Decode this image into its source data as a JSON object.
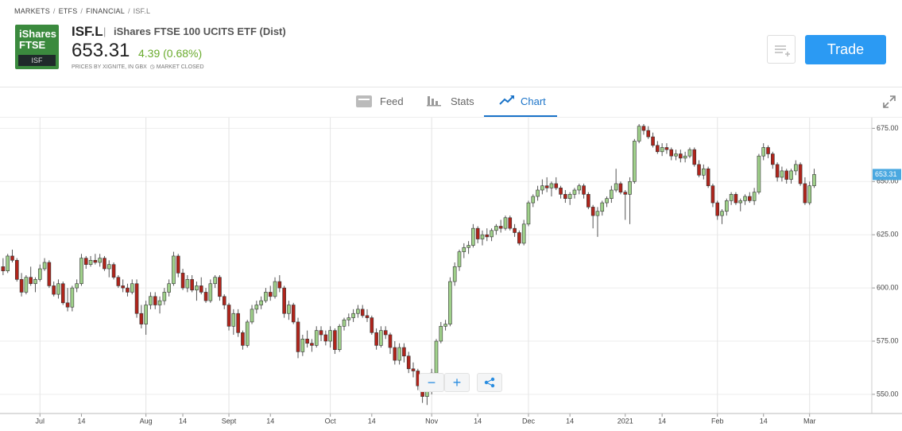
{
  "header": {
    "breadcrumb": [
      "MARKETS",
      "ETFS",
      "FINANCIAL",
      "ISF.L"
    ],
    "logo": {
      "line1": "iShares",
      "line2": "FTSE",
      "badge": "ISF"
    },
    "ticker": "ISF.L",
    "name": "iShares FTSE 100 UCITS ETF (Dist)",
    "price": "653.31",
    "change": "4.39 (0.68%)",
    "source": "PRICES BY XIGNITE, IN GBX",
    "status": "MARKET CLOSED",
    "trade_button": "Trade"
  },
  "tabs": [
    "Feed",
    "Stats",
    "Chart"
  ],
  "chart_data": {
    "type": "candlestick",
    "up_color": "#9fd08a",
    "down_color": "#b0241b",
    "outline_color": "#333333",
    "grid": true,
    "ylim": [
      541,
      680
    ],
    "yticks": [
      {
        "value": 550,
        "label": "550.00"
      },
      {
        "value": 575,
        "label": "575.00"
      },
      {
        "value": 600,
        "label": "600.00"
      },
      {
        "value": 625,
        "label": "625.00"
      },
      {
        "value": 650,
        "label": "650.00"
      },
      {
        "value": 675,
        "label": "675.00"
      }
    ],
    "xlim": [
      -0.67,
      188.5
    ],
    "xticks": [
      {
        "value": 8,
        "label": "Jul"
      },
      {
        "value": 17,
        "label": "14"
      },
      {
        "value": 31,
        "label": "Aug"
      },
      {
        "value": 39,
        "label": "14"
      },
      {
        "value": 49,
        "label": "Sept"
      },
      {
        "value": 58,
        "label": "14"
      },
      {
        "value": 71,
        "label": "Oct"
      },
      {
        "value": 80,
        "label": "14"
      },
      {
        "value": 93,
        "label": "Nov"
      },
      {
        "value": 103,
        "label": "14"
      },
      {
        "value": 114,
        "label": "Dec"
      },
      {
        "value": 123,
        "label": "14"
      },
      {
        "value": 135,
        "label": "2021"
      },
      {
        "value": 143,
        "label": "14"
      },
      {
        "value": 155,
        "label": "Feb"
      },
      {
        "value": 165,
        "label": "14"
      },
      {
        "value": 175,
        "label": "Mar"
      }
    ],
    "last_price": {
      "value": 653.31,
      "label": "653.31"
    },
    "ohlc": [
      [
        610,
        614,
        606,
        608
      ],
      [
        608,
        616,
        607,
        615
      ],
      [
        615,
        618,
        612,
        613
      ],
      [
        613,
        614,
        603,
        604
      ],
      [
        604,
        607,
        596,
        598
      ],
      [
        598,
        606,
        597,
        605
      ],
      [
        605,
        610,
        601,
        602
      ],
      [
        602,
        605,
        598,
        604
      ],
      [
        604,
        611,
        603,
        609
      ],
      [
        609,
        614,
        608,
        612
      ],
      [
        612,
        613,
        600,
        601
      ],
      [
        601,
        603,
        596,
        597
      ],
      [
        597,
        604,
        595,
        602
      ],
      [
        602,
        603,
        592,
        593
      ],
      [
        593,
        600,
        589,
        591
      ],
      [
        591,
        601,
        589,
        600
      ],
      [
        600,
        604,
        598,
        602
      ],
      [
        602,
        616,
        601,
        614
      ],
      [
        614,
        615,
        609,
        611
      ],
      [
        611,
        615,
        610,
        613
      ],
      [
        613,
        616,
        611,
        612
      ],
      [
        612,
        616,
        610,
        614
      ],
      [
        614,
        615,
        608,
        609
      ],
      [
        609,
        613,
        605,
        611
      ],
      [
        611,
        612,
        604,
        605
      ],
      [
        605,
        606,
        600,
        601
      ],
      [
        601,
        604,
        598,
        600
      ],
      [
        600,
        602,
        596,
        598
      ],
      [
        598,
        604,
        597,
        602
      ],
      [
        602,
        604,
        586,
        588
      ],
      [
        588,
        592,
        581,
        583
      ],
      [
        583,
        594,
        578,
        592
      ],
      [
        592,
        598,
        590,
        596
      ],
      [
        596,
        598,
        590,
        592
      ],
      [
        592,
        596,
        588,
        594
      ],
      [
        594,
        600,
        592,
        598
      ],
      [
        598,
        604,
        596,
        602
      ],
      [
        602,
        617,
        601,
        615
      ],
      [
        615,
        616,
        605,
        607
      ],
      [
        607,
        609,
        599,
        600
      ],
      [
        600,
        606,
        598,
        604
      ],
      [
        604,
        606,
        598,
        599
      ],
      [
        599,
        603,
        594,
        601
      ],
      [
        601,
        605,
        597,
        598
      ],
      [
        598,
        600,
        593,
        594
      ],
      [
        594,
        604,
        593,
        602
      ],
      [
        602,
        606,
        600,
        605
      ],
      [
        605,
        606,
        594,
        596
      ],
      [
        596,
        597,
        590,
        592
      ],
      [
        592,
        593,
        580,
        582
      ],
      [
        582,
        590,
        578,
        588
      ],
      [
        588,
        590,
        577,
        579
      ],
      [
        579,
        580,
        571,
        573
      ],
      [
        573,
        585,
        572,
        584
      ],
      [
        584,
        592,
        583,
        590
      ],
      [
        590,
        594,
        588,
        592
      ],
      [
        592,
        596,
        590,
        594
      ],
      [
        594,
        600,
        593,
        598
      ],
      [
        598,
        601,
        594,
        596
      ],
      [
        596,
        605,
        595,
        603
      ],
      [
        603,
        606,
        598,
        600
      ],
      [
        600,
        601,
        586,
        588
      ],
      [
        588,
        594,
        585,
        592
      ],
      [
        592,
        593,
        583,
        584
      ],
      [
        584,
        586,
        567,
        570
      ],
      [
        570,
        578,
        568,
        576
      ],
      [
        576,
        580,
        572,
        574
      ],
      [
        574,
        576,
        570,
        573
      ],
      [
        573,
        582,
        572,
        580
      ],
      [
        580,
        582,
        575,
        578
      ],
      [
        578,
        580,
        573,
        575
      ],
      [
        575,
        582,
        572,
        580
      ],
      [
        580,
        581,
        569,
        571
      ],
      [
        571,
        583,
        570,
        582
      ],
      [
        582,
        586,
        580,
        585
      ],
      [
        585,
        588,
        582,
        586
      ],
      [
        586,
        590,
        584,
        588
      ],
      [
        588,
        592,
        586,
        590
      ],
      [
        590,
        592,
        586,
        587
      ],
      [
        587,
        590,
        584,
        586
      ],
      [
        586,
        587,
        578,
        579
      ],
      [
        579,
        581,
        571,
        573
      ],
      [
        573,
        582,
        572,
        580
      ],
      [
        580,
        582,
        576,
        578
      ],
      [
        578,
        579,
        569,
        572
      ],
      [
        572,
        575,
        564,
        566
      ],
      [
        566,
        574,
        564,
        572
      ],
      [
        572,
        574,
        565,
        568
      ],
      [
        568,
        570,
        560,
        562
      ],
      [
        562,
        565,
        558,
        561
      ],
      [
        561,
        562,
        552,
        554
      ],
      [
        554,
        556,
        546,
        549
      ],
      [
        549,
        555,
        545,
        553
      ],
      [
        553,
        562,
        550,
        560
      ],
      [
        560,
        576,
        559,
        575
      ],
      [
        575,
        584,
        574,
        582
      ],
      [
        582,
        585,
        580,
        583
      ],
      [
        583,
        605,
        582,
        603
      ],
      [
        603,
        612,
        601,
        610
      ],
      [
        610,
        618,
        608,
        617
      ],
      [
        617,
        621,
        614,
        619
      ],
      [
        619,
        622,
        616,
        620
      ],
      [
        620,
        630,
        619,
        628
      ],
      [
        628,
        629,
        621,
        623
      ],
      [
        623,
        627,
        620,
        625
      ],
      [
        625,
        628,
        622,
        624
      ],
      [
        624,
        628,
        622,
        627
      ],
      [
        627,
        630,
        625,
        629
      ],
      [
        629,
        632,
        626,
        628
      ],
      [
        628,
        634,
        627,
        633
      ],
      [
        633,
        634,
        627,
        628
      ],
      [
        628,
        630,
        624,
        626
      ],
      [
        626,
        627,
        620,
        621
      ],
      [
        621,
        632,
        620,
        630
      ],
      [
        630,
        641,
        629,
        640
      ],
      [
        640,
        644,
        638,
        643
      ],
      [
        643,
        648,
        641,
        646
      ],
      [
        646,
        651,
        644,
        648
      ],
      [
        648,
        652,
        645,
        647
      ],
      [
        647,
        650,
        643,
        649
      ],
      [
        649,
        652,
        646,
        647
      ],
      [
        647,
        648,
        642,
        644
      ],
      [
        644,
        646,
        640,
        642
      ],
      [
        642,
        645,
        639,
        644
      ],
      [
        644,
        647,
        642,
        646
      ],
      [
        646,
        649,
        644,
        648
      ],
      [
        648,
        649,
        642,
        644
      ],
      [
        644,
        645,
        637,
        638
      ],
      [
        638,
        639,
        628,
        634
      ],
      [
        634,
        638,
        624,
        636
      ],
      [
        636,
        641,
        634,
        640
      ],
      [
        640,
        643,
        638,
        642
      ],
      [
        642,
        648,
        640,
        646
      ],
      [
        646,
        656,
        645,
        649
      ],
      [
        649,
        650,
        644,
        645
      ],
      [
        645,
        646,
        632,
        644
      ],
      [
        644,
        652,
        630,
        650
      ],
      [
        650,
        670,
        649,
        669
      ],
      [
        669,
        677,
        668,
        676
      ],
      [
        676,
        677,
        672,
        674
      ],
      [
        674,
        676,
        670,
        671
      ],
      [
        671,
        673,
        666,
        667
      ],
      [
        667,
        669,
        663,
        664
      ],
      [
        664,
        668,
        662,
        666
      ],
      [
        666,
        668,
        663,
        665
      ],
      [
        665,
        666,
        660,
        662
      ],
      [
        662,
        665,
        660,
        663
      ],
      [
        663,
        665,
        659,
        661
      ],
      [
        661,
        664,
        659,
        662
      ],
      [
        662,
        666,
        661,
        665
      ],
      [
        665,
        666,
        657,
        658
      ],
      [
        658,
        660,
        652,
        653
      ],
      [
        653,
        658,
        651,
        656
      ],
      [
        656,
        657,
        647,
        648
      ],
      [
        648,
        649,
        638,
        640
      ],
      [
        640,
        641,
        632,
        634
      ],
      [
        634,
        637,
        630,
        636
      ],
      [
        636,
        642,
        634,
        641
      ],
      [
        641,
        645,
        639,
        644
      ],
      [
        644,
        645,
        639,
        640
      ],
      [
        640,
        642,
        636,
        641
      ],
      [
        641,
        644,
        639,
        643
      ],
      [
        643,
        645,
        640,
        641
      ],
      [
        641,
        647,
        639,
        645
      ],
      [
        645,
        663,
        644,
        662
      ],
      [
        662,
        668,
        660,
        666
      ],
      [
        666,
        667,
        661,
        663
      ],
      [
        663,
        664,
        656,
        658
      ],
      [
        658,
        659,
        650,
        652
      ],
      [
        652,
        657,
        650,
        655
      ],
      [
        655,
        656,
        649,
        651
      ],
      [
        651,
        656,
        649,
        655
      ],
      [
        655,
        660,
        653,
        658
      ],
      [
        658,
        659,
        648,
        649
      ],
      [
        649,
        652,
        639,
        640
      ],
      [
        640,
        650,
        639,
        648
      ],
      [
        648,
        656,
        647,
        653.31
      ]
    ]
  }
}
